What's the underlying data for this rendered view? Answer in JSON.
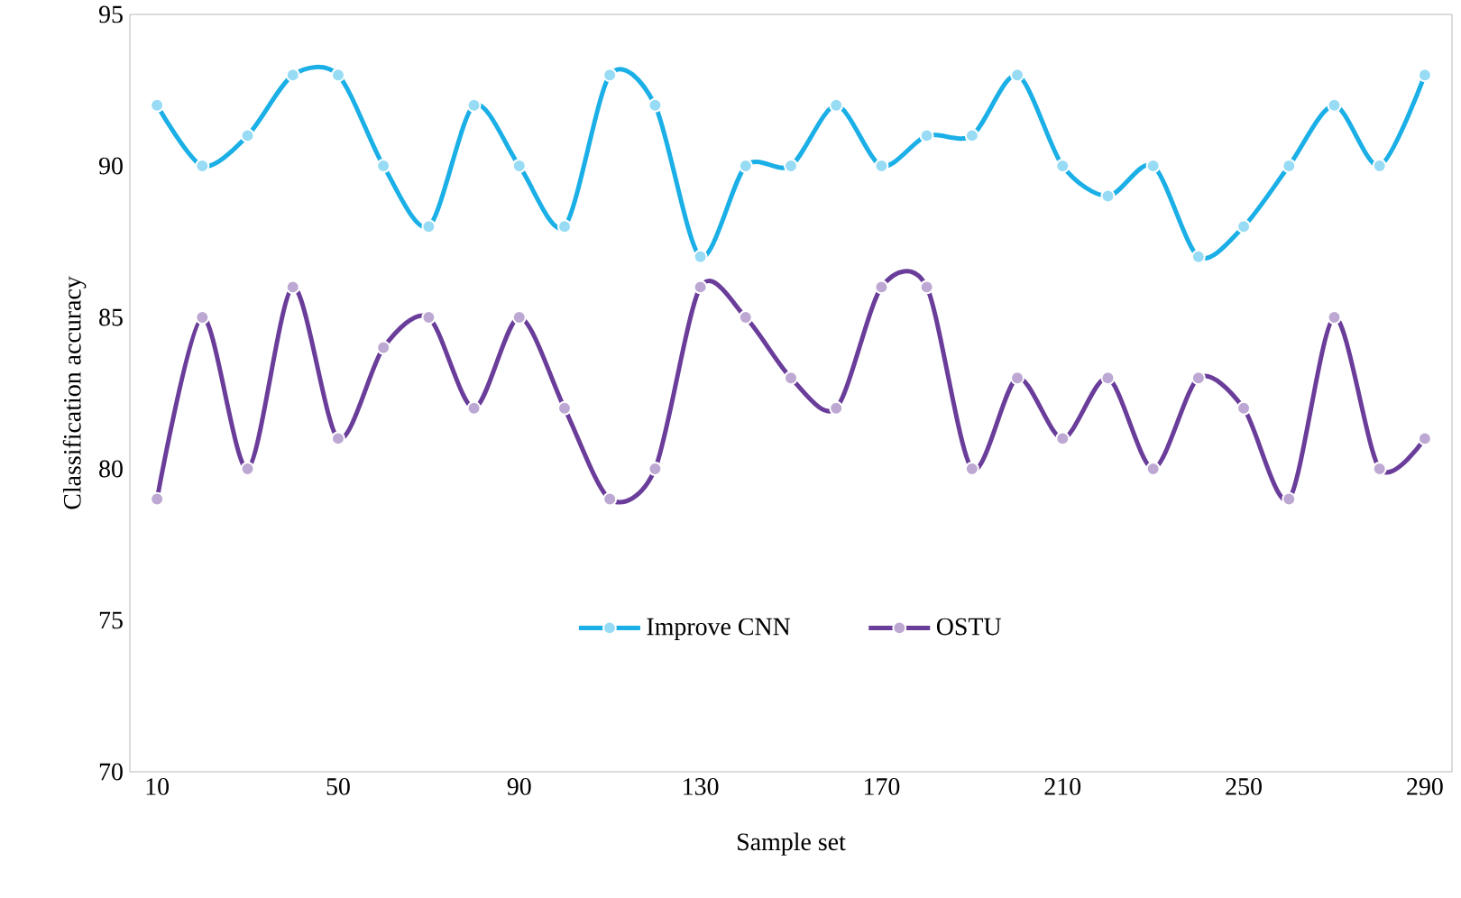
{
  "chart_data": {
    "type": "line",
    "xlabel": "Sample set",
    "ylabel": "Classification accuracy",
    "x": [
      10,
      20,
      30,
      40,
      50,
      60,
      70,
      80,
      90,
      100,
      110,
      120,
      130,
      140,
      150,
      160,
      170,
      180,
      190,
      200,
      210,
      220,
      230,
      240,
      250,
      260,
      270,
      280,
      290
    ],
    "series": [
      {
        "name": "Improve CNN",
        "color": "#1aafe6",
        "values": [
          92,
          90,
          91,
          93,
          93,
          90,
          88,
          92,
          90,
          88,
          93,
          92,
          87,
          90,
          90,
          92,
          90,
          91,
          91,
          93,
          90,
          89,
          90,
          87,
          88,
          90,
          92,
          90,
          93
        ]
      },
      {
        "name": "OSTU",
        "color": "#6a3d9a",
        "values": [
          79,
          85,
          80,
          86,
          81,
          84,
          85,
          82,
          85,
          82,
          79,
          80,
          86,
          85,
          83,
          82,
          86,
          86,
          80,
          83,
          81,
          83,
          80,
          83,
          82,
          79,
          85,
          80,
          81
        ]
      }
    ],
    "xlim": [
      4,
      296
    ],
    "xticks": [
      10,
      50,
      90,
      130,
      170,
      210,
      250,
      290
    ],
    "ylim": [
      70,
      95
    ],
    "yticks": [
      70,
      75,
      80,
      85,
      90,
      95
    ],
    "grid": false,
    "legend": "bottom",
    "marker": "circle",
    "line_style": "solid"
  }
}
